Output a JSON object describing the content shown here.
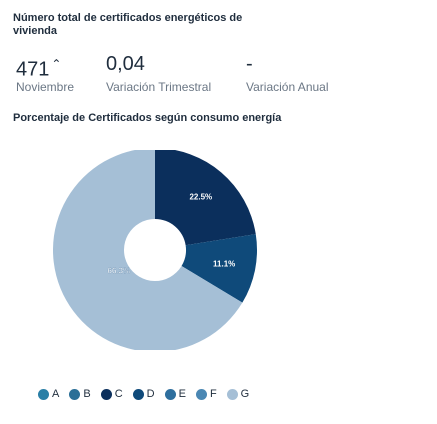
{
  "header": {
    "title": "Número total de certificados energéticos de vivienda"
  },
  "kpis": [
    {
      "value": "471",
      "trend_icon": "arrow-up-icon",
      "trend_symbol": "⌃",
      "label": "Noviembre"
    },
    {
      "value": "0,04",
      "label": "Variación Trimestral"
    },
    {
      "value": "-",
      "label": "Variación Anual"
    }
  ],
  "section": {
    "title": "Porcentaje de Certificados según consumo energía"
  },
  "chart_data": {
    "type": "pie",
    "style": "donut",
    "categories": [
      "A",
      "B",
      "C",
      "D",
      "E",
      "F",
      "G"
    ],
    "values": [
      0,
      0,
      22.5,
      11.1,
      0,
      0,
      66.3
    ],
    "data_labels": [
      "",
      "",
      "22.5%",
      "11.1%",
      "",
      "",
      "66.3%"
    ],
    "colors": [
      "#2a7fa6",
      "#2a6f97",
      "#0b2f5c",
      "#0f4a7a",
      "#2e6f9e",
      "#4a87b3",
      "#a5bfd6"
    ],
    "legend": "bottom"
  }
}
